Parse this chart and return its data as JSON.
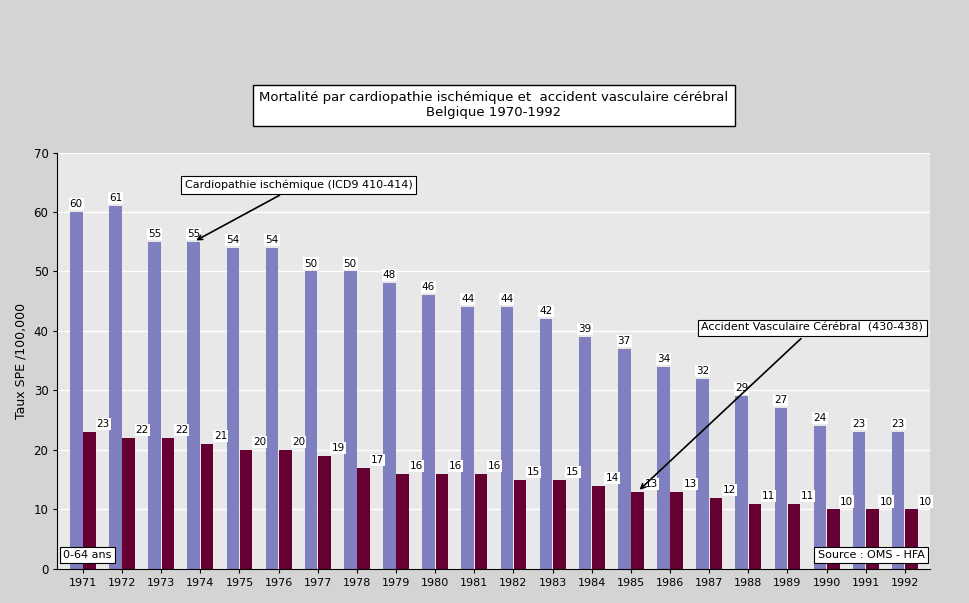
{
  "years": [
    1971,
    1972,
    1973,
    1974,
    1975,
    1976,
    1977,
    1978,
    1979,
    1980,
    1981,
    1982,
    1983,
    1984,
    1985,
    1986,
    1987,
    1988,
    1989,
    1990,
    1991,
    1992
  ],
  "cardio": [
    60,
    61,
    55,
    55,
    54,
    54,
    50,
    50,
    48,
    46,
    44,
    44,
    42,
    39,
    37,
    34,
    32,
    29,
    27,
    24,
    23,
    23
  ],
  "avc": [
    23,
    22,
    22,
    21,
    20,
    20,
    19,
    17,
    16,
    16,
    16,
    15,
    15,
    14,
    13,
    13,
    12,
    11,
    11,
    10,
    10,
    10
  ],
  "cardio_color": "#8080c0",
  "avc_color": "#660033",
  "bg_color": "#d4d4d4",
  "plot_bg_color": "#e8e8e8",
  "title_line1": "Mortalité par cardiopathie ischémique et  accident vasculaire cérébral",
  "title_line2": "Belgique 1970-1992",
  "ylabel": "Taux SPE /100,000",
  "ylim": [
    0,
    70
  ],
  "yticks": [
    0,
    10,
    20,
    30,
    40,
    50,
    60,
    70
  ],
  "label_cardio": "Cardiopathie ischémique (ICD9 410-414)",
  "label_avc": "Accident Vasculaire Cérébral  (430-438)",
  "note_age": "0-64 ans",
  "note_source": "Source : OMS - HFA"
}
